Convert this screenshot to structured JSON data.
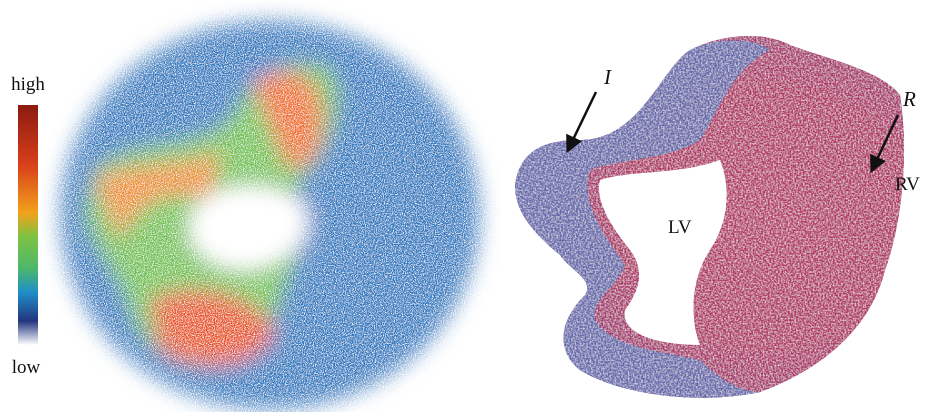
{
  "colorbar": {
    "high": "high",
    "low": "low"
  },
  "labels": {
    "infarct": "I",
    "remote": "R",
    "left_ventricle": "LV",
    "right_ventricle": "RV"
  }
}
